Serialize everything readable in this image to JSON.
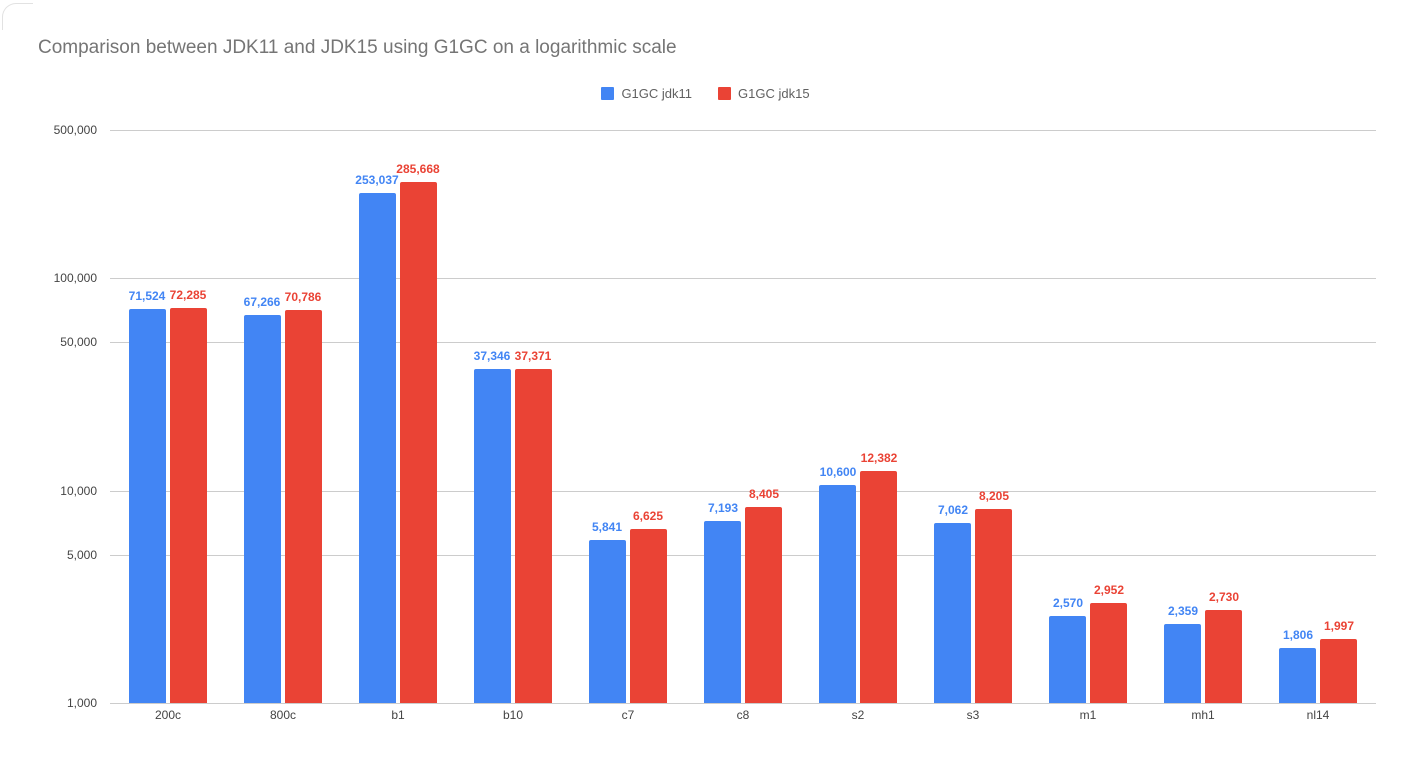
{
  "page": {
    "background": "#ffffff"
  },
  "header": {
    "title": "Comparison between JDK11 and JDK15 using G1GC on a logarithmic scale"
  },
  "chart_data": {
    "type": "bar",
    "orientation": "vertical",
    "title": "Comparison between JDK11 and JDK15 using G1GC on a logarithmic scale",
    "categories": [
      "200c",
      "800c",
      "b1",
      "b10",
      "c7",
      "c8",
      "s2",
      "s3",
      "m1",
      "mh1",
      "nl14"
    ],
    "series": [
      {
        "name": "G1GC jdk11",
        "color": "#4285f4",
        "values": [
          71524,
          67266,
          253037,
          37346,
          5841,
          7193,
          10600,
          7062,
          2570,
          2359,
          1806
        ]
      },
      {
        "name": "G1GC jdk15",
        "color": "#ea4335",
        "values": [
          72285,
          70786,
          285668,
          37371,
          6625,
          8405,
          12382,
          8205,
          2952,
          2730,
          1997
        ]
      }
    ],
    "y_axis": {
      "scale": "log",
      "range": [
        1000,
        500000
      ],
      "ticks": [
        1000,
        5000,
        10000,
        50000,
        100000,
        500000
      ],
      "tick_labels": [
        "1,000",
        "5,000",
        "10,000",
        "50,000",
        "100,000",
        "500,000"
      ]
    },
    "x_axis": {
      "label": ""
    },
    "legend": {
      "position": "top",
      "entries": [
        "G1GC jdk11",
        "G1GC jdk15"
      ]
    },
    "grid": true,
    "data_labels": true
  },
  "colors": {
    "series_jdk11": "#4285f4",
    "series_jdk15": "#ea4335",
    "gridline": "#cccccc",
    "axis_text": "#444444",
    "title_text": "#757575",
    "legend_text": "#616161"
  }
}
